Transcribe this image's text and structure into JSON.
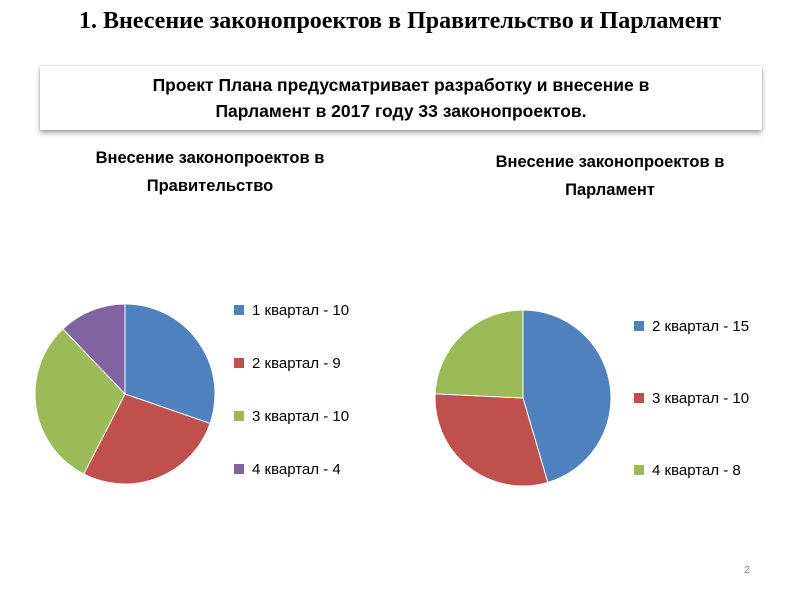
{
  "slide": {
    "title": "1. Внесение законопроектов в Правительство и Парламент",
    "callout_line1": "Проект Плана предусматривает разработку и внесение в",
    "callout_line2": "Парламент в 2017  году 33 законопроектов.",
    "page_number": "2"
  },
  "chart_data": [
    {
      "type": "pie",
      "title_line1": "Внесение законопроектов в",
      "title_line2": "Правительство",
      "legend_position": "right",
      "slices": [
        {
          "label": "1 квартал - 10",
          "value": 10,
          "color": "#4f81bd"
        },
        {
          "label": "2 квартал - 9",
          "value": 9,
          "color": "#c0504d"
        },
        {
          "label": "3 квартал - 10",
          "value": 10,
          "color": "#9bbb59"
        },
        {
          "label": "4 квартал - 4",
          "value": 4,
          "color": "#8064a2"
        }
      ]
    },
    {
      "type": "pie",
      "title_line1": "Внесение законопроектов в",
      "title_line2": "Парламент",
      "legend_position": "right",
      "slices": [
        {
          "label": "2 квартал - 15",
          "value": 15,
          "color": "#4f81bd"
        },
        {
          "label": "3 квартал - 10",
          "value": 10,
          "color": "#c0504d"
        },
        {
          "label": "4 квартал - 8",
          "value": 8,
          "color": "#9bbb59"
        }
      ]
    }
  ]
}
